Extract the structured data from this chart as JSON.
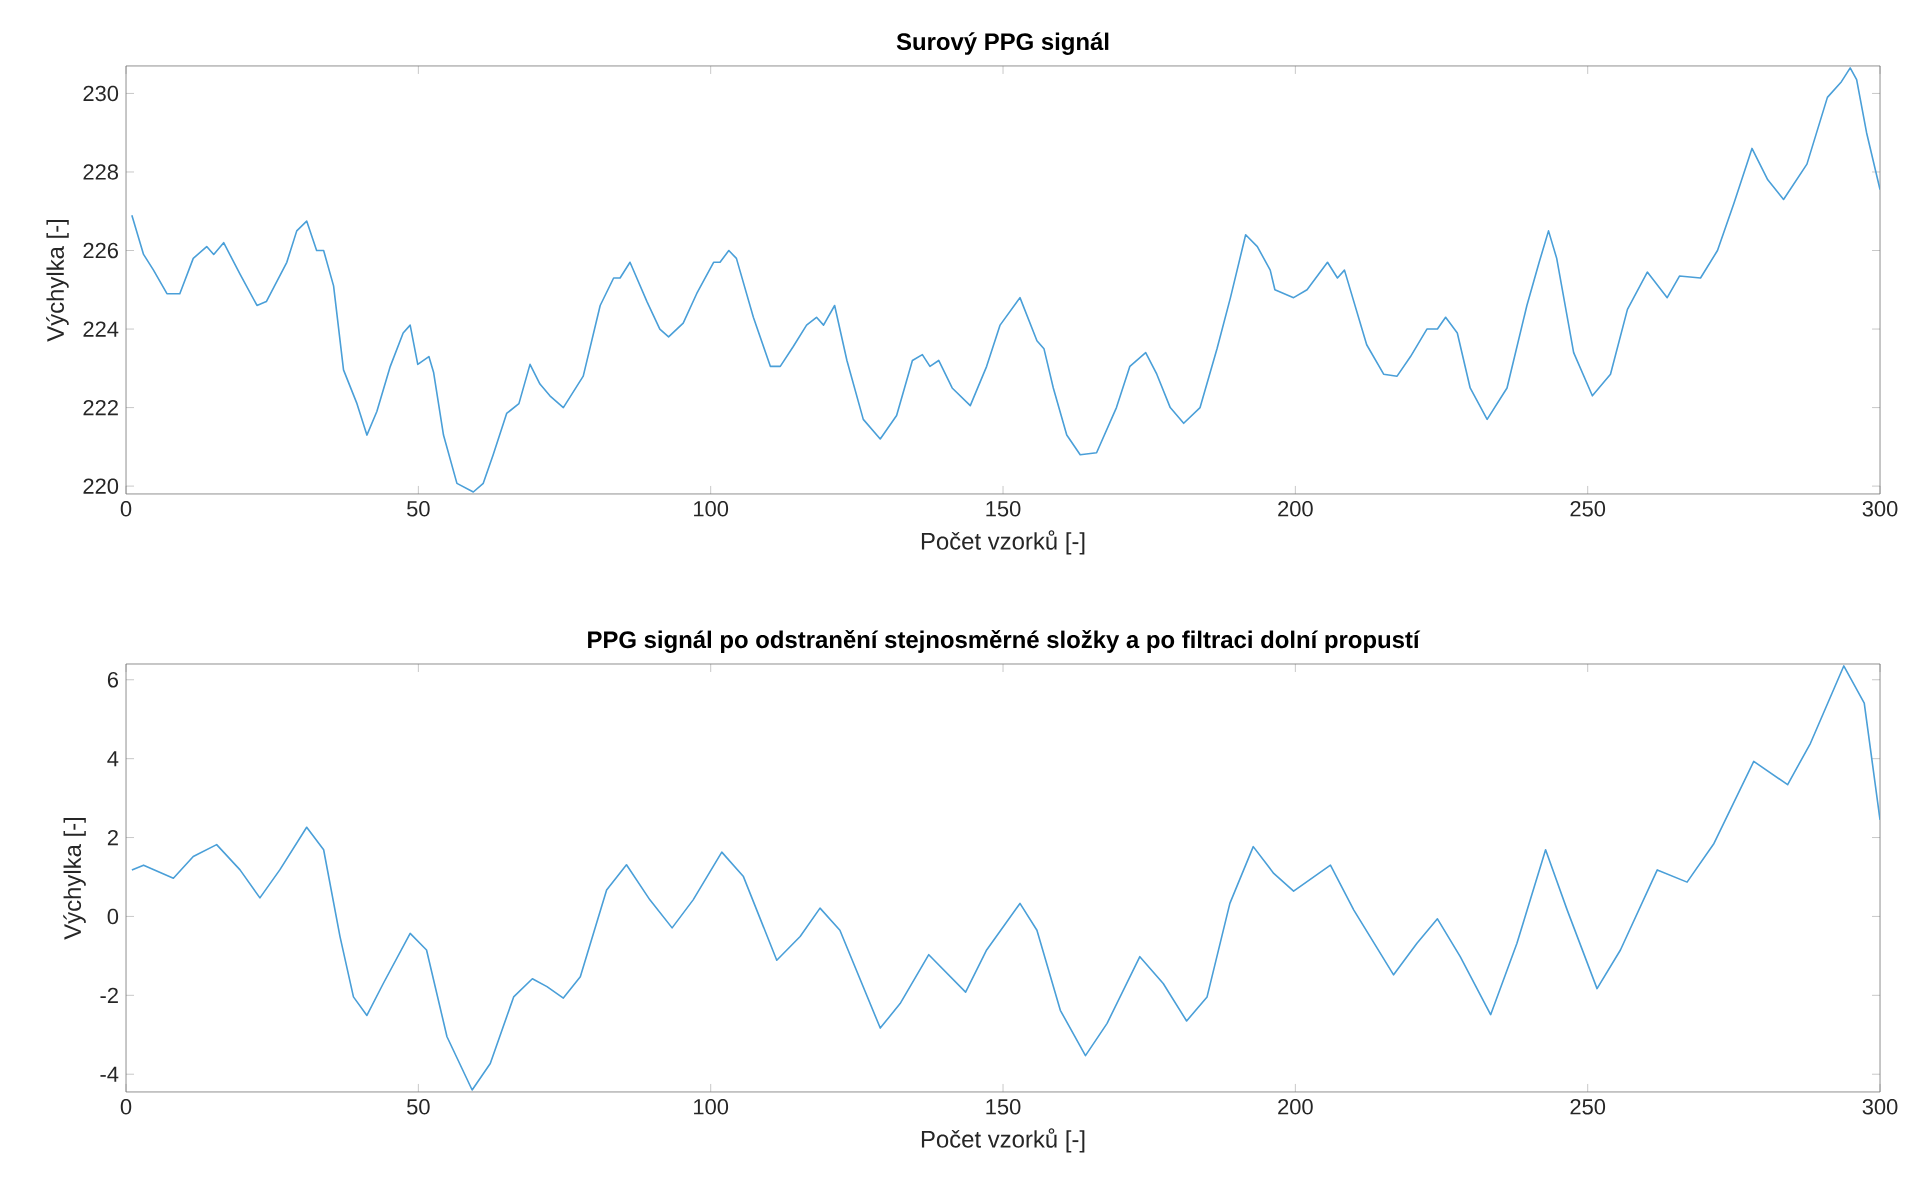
{
  "chart_data": [
    {
      "type": "line",
      "title": "Surový PPG signál",
      "xlabel": "Počet vzorků [-]",
      "ylabel": "Výchylka [-]",
      "color": "#4a9fd8",
      "xlim": [
        0,
        300
      ],
      "xticks": [
        0,
        50,
        100,
        150,
        200,
        250,
        300
      ],
      "ylim": [
        219.8,
        230.7
      ],
      "yticks": [
        220,
        222,
        224,
        226,
        228,
        230
      ],
      "x": [
        1,
        3,
        4.7,
        7,
        9.2,
        11.5,
        13.8,
        15,
        16.7,
        19.5,
        22.4,
        24,
        27.5,
        29.2,
        30.9,
        32.6,
        33.8,
        35.5,
        37.2,
        39.5,
        41.2,
        42.9,
        45.2,
        47.4,
        48.6,
        49.9,
        51.8,
        52.6,
        54.3,
        56.6,
        59.4,
        61.1,
        62.8,
        65.1,
        67.2,
        69.1,
        70.8,
        72.5,
        74.8,
        78.2,
        81.1,
        83.4,
        84.5,
        86.2,
        89.1,
        91.3,
        92.8,
        95.3,
        97.6,
        100.5,
        101.6,
        103.1,
        104.4,
        107.3,
        110.2,
        111.9,
        114.1,
        116.4,
        118.1,
        119.3,
        121.2,
        123.3,
        126.1,
        129,
        131.8,
        134.5,
        136.2,
        137.5,
        139,
        141.3,
        144.4,
        147.2,
        149.5,
        152.9,
        155.8,
        157,
        158.6,
        160.9,
        163.2,
        166,
        169.4,
        171.7,
        174.4,
        176.3,
        178.6,
        180.9,
        183.7,
        186.6,
        188.9,
        191.5,
        193.5,
        195.7,
        196.5,
        199.7,
        202,
        205.5,
        207.2,
        208.4,
        212.2,
        215.1,
        217.4,
        219.7,
        222.5,
        224.3,
        225.7,
        227.7,
        229.9,
        232.8,
        236.2,
        239.6,
        241.7,
        243.3,
        244.7,
        247.6,
        250.8,
        253.9,
        256.8,
        260.2,
        263.6,
        265.7,
        269.3,
        272.2,
        275,
        278.1,
        280.8,
        283.5,
        287.5,
        291,
        293.4,
        294.9,
        296,
        297.7,
        300
      ],
      "values": [
        226.9,
        225.9,
        225.5,
        224.9,
        224.9,
        225.8,
        226.1,
        225.9,
        226.2,
        225.4,
        224.6,
        224.7,
        225.7,
        226.5,
        226.75,
        226,
        226,
        225.1,
        222.96,
        222.1,
        221.3,
        221.9,
        223.05,
        223.9,
        224.1,
        223.1,
        223.3,
        222.9,
        221.3,
        220.07,
        219.85,
        220.07,
        220.8,
        221.85,
        222.1,
        223.1,
        222.6,
        222.3,
        222,
        222.8,
        224.6,
        225.3,
        225.3,
        225.7,
        224.7,
        224,
        223.8,
        224.15,
        224.9,
        225.7,
        225.7,
        226,
        225.8,
        224.3,
        223.05,
        223.05,
        223.55,
        224.1,
        224.3,
        224.1,
        224.6,
        223.2,
        221.7,
        221.2,
        221.8,
        223.2,
        223.35,
        223.05,
        223.2,
        222.5,
        222.05,
        223.05,
        224.1,
        224.8,
        223.7,
        223.5,
        222.5,
        221.3,
        220.8,
        220.85,
        222,
        223.05,
        223.4,
        222.85,
        222,
        221.6,
        222,
        223.5,
        224.8,
        226.4,
        226.1,
        225.5,
        225,
        224.8,
        225,
        225.7,
        225.3,
        225.5,
        223.6,
        222.85,
        222.8,
        223.3,
        224,
        224,
        224.3,
        223.9,
        222.5,
        221.7,
        222.5,
        224.6,
        225.7,
        226.5,
        225.8,
        223.4,
        222.3,
        222.85,
        224.5,
        225.45,
        224.8,
        225.35,
        225.3,
        226,
        227.2,
        228.6,
        227.8,
        227.3,
        228.2,
        229.9,
        230.3,
        230.65,
        230.35,
        229,
        227.55
      ]
    },
    {
      "type": "line",
      "title": "PPG signál po odstranění stejnosměrné složky a po filtraci dolní propustí",
      "xlabel": "Počet vzorků [-]",
      "ylabel": "Výchylka [-]",
      "color": "#4a9fd8",
      "xlim": [
        0,
        300
      ],
      "xticks": [
        0,
        50,
        100,
        150,
        200,
        250,
        300
      ],
      "ylim": [
        -4.45,
        6.4
      ],
      "yticks": [
        -4,
        -2,
        0,
        2,
        4,
        6
      ],
      "x": [
        1,
        3,
        8.1,
        11.5,
        15.5,
        19.5,
        22.9,
        26.3,
        30.9,
        33.8,
        36.6,
        38.9,
        41.2,
        44,
        48.6,
        51.4,
        54.9,
        59.2,
        62.3,
        66.3,
        69.5,
        72,
        74.8,
        77.7,
        82.2,
        85.6,
        89.6,
        93.4,
        97,
        101.9,
        105.6,
        111.3,
        115.3,
        118.7,
        122.1,
        129,
        132.4,
        137.3,
        143.6,
        147.2,
        152.9,
        155.8,
        159.8,
        164.1,
        167.8,
        173.4,
        177.4,
        181.4,
        184.9,
        188.8,
        192.8,
        196.3,
        199.7,
        206,
        210,
        216.8,
        220.8,
        224.3,
        228.2,
        233.4,
        237.9,
        242.8,
        246.5,
        251.6,
        255.6,
        261.9,
        267,
        271.6,
        278.4,
        284.2,
        288.1,
        293.8,
        297.3,
        300
      ],
      "values": [
        1.18,
        1.3,
        0.97,
        1.52,
        1.82,
        1.18,
        0.47,
        1.18,
        2.26,
        1.69,
        -0.51,
        -2.04,
        -2.51,
        -1.7,
        -0.43,
        -0.85,
        -3.05,
        -4.4,
        -3.73,
        -2.04,
        -1.58,
        -1.78,
        -2.07,
        -1.53,
        0.67,
        1.31,
        0.42,
        -0.29,
        0.42,
        1.63,
        1.01,
        -1.11,
        -0.51,
        0.21,
        -0.35,
        -2.83,
        -2.21,
        -0.97,
        -1.92,
        -0.85,
        0.33,
        -0.35,
        -2.38,
        -3.53,
        -2.71,
        -1.02,
        -1.7,
        -2.65,
        -2.04,
        0.33,
        1.77,
        1.09,
        0.64,
        1.3,
        0.16,
        -1.48,
        -0.68,
        -0.06,
        -1.02,
        -2.49,
        -0.68,
        1.69,
        0.16,
        -1.83,
        -0.85,
        1.18,
        0.87,
        1.85,
        3.93,
        3.34,
        4.39,
        6.35,
        5.41,
        2.45
      ]
    }
  ]
}
